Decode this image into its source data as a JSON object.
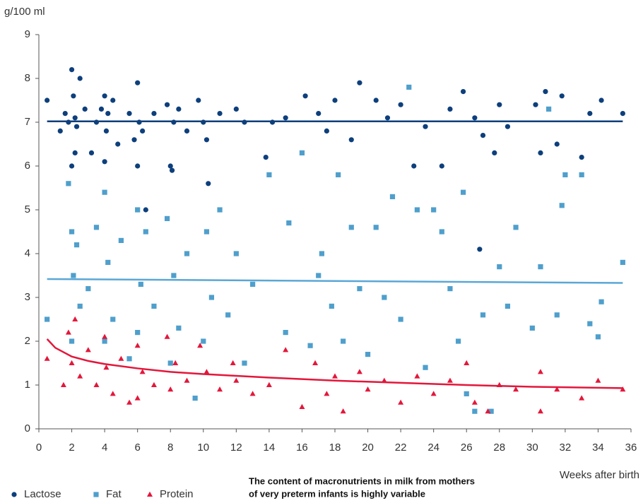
{
  "chart_data": {
    "type": "scatter",
    "y_label": "g/100 ml",
    "x_label": "Weeks after birth",
    "annotation": [
      "The content of macronutrients in milk from mothers",
      "of very preterm infants is highly variable"
    ],
    "xlim": [
      0,
      36
    ],
    "xticks": [
      0,
      2,
      4,
      6,
      8,
      10,
      12,
      14,
      16,
      18,
      20,
      22,
      24,
      26,
      28,
      30,
      32,
      34,
      36
    ],
    "ylim": [
      0,
      9
    ],
    "yticks": [
      0,
      1,
      2,
      3,
      4,
      5,
      6,
      7,
      8,
      9
    ],
    "series": [
      {
        "name": "Lactose",
        "color": "#0d3f7c",
        "marker": "circle",
        "x": [
          0.5,
          1.3,
          1.6,
          1.8,
          2.0,
          2.0,
          2.1,
          2.2,
          2.2,
          2.3,
          2.5,
          2.8,
          3.2,
          3.5,
          3.8,
          4.0,
          4.0,
          4.1,
          4.2,
          4.5,
          4.8,
          5.5,
          5.8,
          6.0,
          6.0,
          6.1,
          6.3,
          6.5,
          7.0,
          7.8,
          8.0,
          8.1,
          8.2,
          8.5,
          9.0,
          9.7,
          10.0,
          10.2,
          10.3,
          11.0,
          12.0,
          12.5,
          13.8,
          14.2,
          15.0,
          16.2,
          17.0,
          17.5,
          18.0,
          19.0,
          19.5,
          20.5,
          21.2,
          22.0,
          22.8,
          23.5,
          24.5,
          25.0,
          25.8,
          26.5,
          26.8,
          27.0,
          27.7,
          28.0,
          28.5,
          30.2,
          30.5,
          30.8,
          31.5,
          31.8,
          33.0,
          33.5,
          34.2,
          35.5
        ],
        "values": [
          7.5,
          6.8,
          7.2,
          7.0,
          8.2,
          6.0,
          7.6,
          6.3,
          7.1,
          6.9,
          8.0,
          7.3,
          6.3,
          7.0,
          7.3,
          6.1,
          7.6,
          6.8,
          7.2,
          7.5,
          6.5,
          7.2,
          6.6,
          7.9,
          6.0,
          7.0,
          6.8,
          5.0,
          7.2,
          7.4,
          6.0,
          5.9,
          7.0,
          7.3,
          6.8,
          7.5,
          7.0,
          6.6,
          5.6,
          7.2,
          7.3,
          7.0,
          6.2,
          7.0,
          7.1,
          7.6,
          7.2,
          6.8,
          7.5,
          6.6,
          7.9,
          7.5,
          7.1,
          7.4,
          6.0,
          6.9,
          6.0,
          7.3,
          7.7,
          7.1,
          4.1,
          6.7,
          6.3,
          7.4,
          6.9,
          7.4,
          6.3,
          7.7,
          6.5,
          7.6,
          6.2,
          7.2,
          7.5,
          7.2
        ]
      },
      {
        "name": "Fat",
        "color": "#4f9fcc",
        "marker": "square",
        "x": [
          0.5,
          1.8,
          2.0,
          2.0,
          2.1,
          2.3,
          2.5,
          3.0,
          3.5,
          4.0,
          4.0,
          4.2,
          4.5,
          5.0,
          5.5,
          6.0,
          6.0,
          6.2,
          6.5,
          7.0,
          7.8,
          8.0,
          8.2,
          8.5,
          9.0,
          9.5,
          10.0,
          10.2,
          10.5,
          11.0,
          11.5,
          12.0,
          12.5,
          13.0,
          14.0,
          15.0,
          15.2,
          16.0,
          16.5,
          17.0,
          17.2,
          17.8,
          18.2,
          18.5,
          19.0,
          19.5,
          20.0,
          20.5,
          21.0,
          21.5,
          22.0,
          22.5,
          23.0,
          23.5,
          24.0,
          24.5,
          25.0,
          25.5,
          25.8,
          26.0,
          26.5,
          27.0,
          27.5,
          28.0,
          28.5,
          29.0,
          30.0,
          30.5,
          31.0,
          31.5,
          31.8,
          32.0,
          33.0,
          33.5,
          34.0,
          34.2,
          35.5
        ],
        "values": [
          2.5,
          5.6,
          4.5,
          2.0,
          3.5,
          4.2,
          2.8,
          3.2,
          4.6,
          5.4,
          2.0,
          3.8,
          2.5,
          4.3,
          1.6,
          5.0,
          2.2,
          3.3,
          4.5,
          2.8,
          4.8,
          1.5,
          3.5,
          2.3,
          4.0,
          0.7,
          2.0,
          4.5,
          3.0,
          5.0,
          2.6,
          4.0,
          1.5,
          3.3,
          5.8,
          2.2,
          4.7,
          6.3,
          1.9,
          3.5,
          4.0,
          2.8,
          5.8,
          2.0,
          4.6,
          3.2,
          1.7,
          4.6,
          3.0,
          5.3,
          2.5,
          7.8,
          5.0,
          1.4,
          5.0,
          4.5,
          3.2,
          2.0,
          5.4,
          0.8,
          0.4,
          2.6,
          0.4,
          3.7,
          2.8,
          4.6,
          2.3,
          3.7,
          7.3,
          2.6,
          5.1,
          5.8,
          5.8,
          2.4,
          2.1,
          2.9,
          3.8
        ]
      },
      {
        "name": "Protein",
        "color": "#e3173b",
        "marker": "triangle",
        "x": [
          0.5,
          1.5,
          1.8,
          2.0,
          2.2,
          2.5,
          3.0,
          3.5,
          4.0,
          4.1,
          4.5,
          5.0,
          5.5,
          6.0,
          6.0,
          6.3,
          7.0,
          7.8,
          8.0,
          8.3,
          9.0,
          9.8,
          10.2,
          11.0,
          11.8,
          12.0,
          13.0,
          14.0,
          15.0,
          16.0,
          16.8,
          17.5,
          18.0,
          18.5,
          19.5,
          20.0,
          21.0,
          22.0,
          23.0,
          24.0,
          25.0,
          26.0,
          26.5,
          27.3,
          28.0,
          29.0,
          30.5,
          30.5,
          31.5,
          33.0,
          34.0,
          35.5
        ],
        "values": [
          1.6,
          1.0,
          2.2,
          1.5,
          2.5,
          1.2,
          1.8,
          1.0,
          2.1,
          1.4,
          0.8,
          1.6,
          0.6,
          1.9,
          0.7,
          1.3,
          1.0,
          2.1,
          0.9,
          1.5,
          1.1,
          1.9,
          1.3,
          0.9,
          1.5,
          1.1,
          0.8,
          1.0,
          1.8,
          0.5,
          1.5,
          0.8,
          1.2,
          0.4,
          1.3,
          0.9,
          1.1,
          0.6,
          1.2,
          0.8,
          1.1,
          1.5,
          0.6,
          0.4,
          1.0,
          0.9,
          1.3,
          0.4,
          0.9,
          0.7,
          1.1,
          0.9
        ]
      }
    ],
    "trend_lines": [
      {
        "color": "#0d3f7c",
        "x": [
          0.5,
          35.5
        ],
        "values": [
          7.02,
          7.02
        ]
      },
      {
        "color": "#5aa7d6",
        "x": [
          0.5,
          35.5
        ],
        "values": [
          3.42,
          3.33
        ]
      },
      {
        "color": "#e3173b",
        "x": [
          0.5,
          1,
          2,
          3,
          4,
          6,
          8,
          10,
          14,
          18,
          22,
          26,
          30,
          35.5
        ],
        "values": [
          2.05,
          1.85,
          1.65,
          1.55,
          1.48,
          1.38,
          1.3,
          1.25,
          1.17,
          1.1,
          1.05,
          1.0,
          0.96,
          0.93
        ]
      }
    ]
  }
}
